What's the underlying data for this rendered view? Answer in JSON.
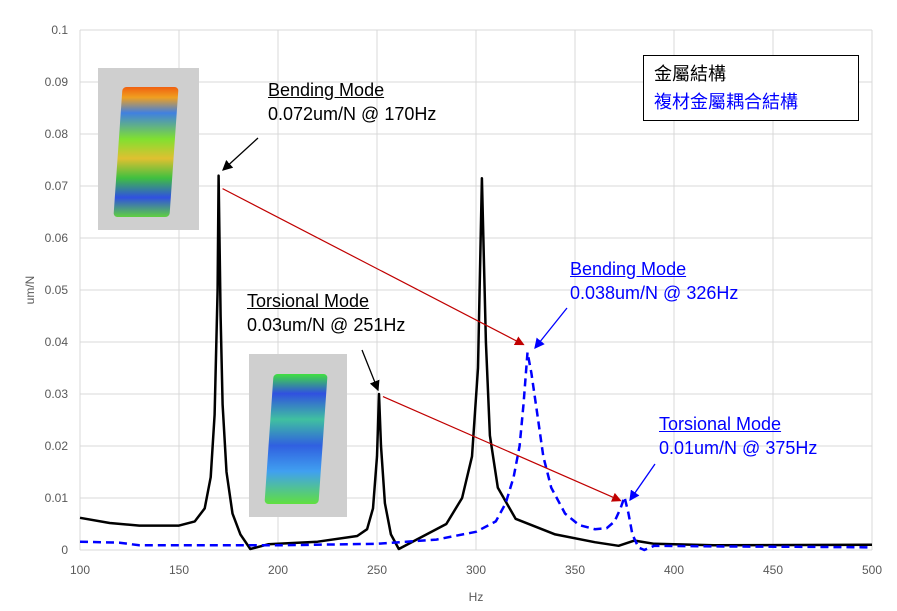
{
  "chart_data": {
    "type": "line",
    "title": "",
    "xlabel": "Hz",
    "ylabel": "um/N",
    "xlim": [
      100,
      500
    ],
    "ylim": [
      0,
      0.1
    ],
    "xticks": [
      100,
      150,
      200,
      250,
      300,
      350,
      400,
      450,
      500
    ],
    "yticks": [
      "0",
      "0.01",
      "0.02",
      "0.03",
      "0.04",
      "0.05",
      "0.06",
      "0.07",
      "0.08",
      "0.09",
      "0.1"
    ],
    "grid": true,
    "legend_position": "top-right",
    "series": [
      {
        "name": "金屬結構",
        "color": "#000000",
        "style": "solid",
        "points": [
          [
            100,
            0.0062
          ],
          [
            115,
            0.0052
          ],
          [
            130,
            0.0047
          ],
          [
            150,
            0.0047
          ],
          [
            158,
            0.0055
          ],
          [
            163,
            0.008
          ],
          [
            166,
            0.014
          ],
          [
            168,
            0.026
          ],
          [
            169.5,
            0.05
          ],
          [
            170,
            0.072
          ],
          [
            171,
            0.045
          ],
          [
            172,
            0.028
          ],
          [
            174,
            0.015
          ],
          [
            177,
            0.007
          ],
          [
            181,
            0.003
          ],
          [
            186,
            0.0002
          ],
          [
            195,
            0.0011
          ],
          [
            220,
            0.0016
          ],
          [
            240,
            0.0027
          ],
          [
            245,
            0.004
          ],
          [
            248,
            0.008
          ],
          [
            250,
            0.018
          ],
          [
            251,
            0.03
          ],
          [
            252,
            0.02
          ],
          [
            254,
            0.009
          ],
          [
            257,
            0.003
          ],
          [
            261,
            0.0002
          ],
          [
            270,
            0.002
          ],
          [
            285,
            0.005
          ],
          [
            293,
            0.01
          ],
          [
            298,
            0.018
          ],
          [
            301,
            0.035
          ],
          [
            303,
            0.0715
          ],
          [
            305,
            0.04
          ],
          [
            307,
            0.022
          ],
          [
            311,
            0.012
          ],
          [
            320,
            0.006
          ],
          [
            340,
            0.003
          ],
          [
            360,
            0.0015
          ],
          [
            372,
            0.0008
          ],
          [
            376,
            0.0013
          ],
          [
            380,
            0.0018
          ],
          [
            390,
            0.0012
          ],
          [
            420,
            0.0009
          ],
          [
            500,
            0.001
          ]
        ]
      },
      {
        "name": "複材金屬耦合結構",
        "color": "#0000ff",
        "style": "dashed",
        "points": [
          [
            100,
            0.0016
          ],
          [
            120,
            0.0014
          ],
          [
            130,
            0.0009
          ],
          [
            200,
            0.0009
          ],
          [
            250,
            0.0012
          ],
          [
            280,
            0.002
          ],
          [
            300,
            0.0035
          ],
          [
            310,
            0.0055
          ],
          [
            315,
            0.009
          ],
          [
            319,
            0.014
          ],
          [
            322,
            0.02
          ],
          [
            324,
            0.028
          ],
          [
            326,
            0.038
          ],
          [
            328,
            0.034
          ],
          [
            331,
            0.026
          ],
          [
            334,
            0.018
          ],
          [
            338,
            0.012
          ],
          [
            345,
            0.007
          ],
          [
            352,
            0.0048
          ],
          [
            360,
            0.004
          ],
          [
            366,
            0.0042
          ],
          [
            370,
            0.0055
          ],
          [
            373,
            0.008
          ],
          [
            375,
            0.0102
          ],
          [
            377,
            0.007
          ],
          [
            379,
            0.003
          ],
          [
            382,
            0.0005
          ],
          [
            385,
            0
          ],
          [
            390,
            0.0008
          ],
          [
            420,
            0.0007
          ],
          [
            470,
            0.0006
          ],
          [
            500,
            0.0005
          ]
        ]
      }
    ],
    "annotations": [
      {
        "title": "Bending Mode",
        "value": "0.072um/N @ 170Hz",
        "color": "#000000"
      },
      {
        "title": "Torsional Mode",
        "value": "0.03um/N @ 251Hz",
        "color": "#000000"
      },
      {
        "title": "Bending Mode",
        "value": "0.038um/N @ 326Hz",
        "color": "#0000ff"
      },
      {
        "title": "Torsional Mode",
        "value": "0.01um/N @ 375Hz",
        "color": "#0000ff"
      }
    ],
    "shift_arrows": [
      [
        [
          172,
          0.0695
        ],
        [
          324,
          0.0395
        ]
      ],
      [
        [
          253,
          0.0295
        ],
        [
          373,
          0.0095
        ]
      ]
    ],
    "arrow_color": "#c00000"
  }
}
